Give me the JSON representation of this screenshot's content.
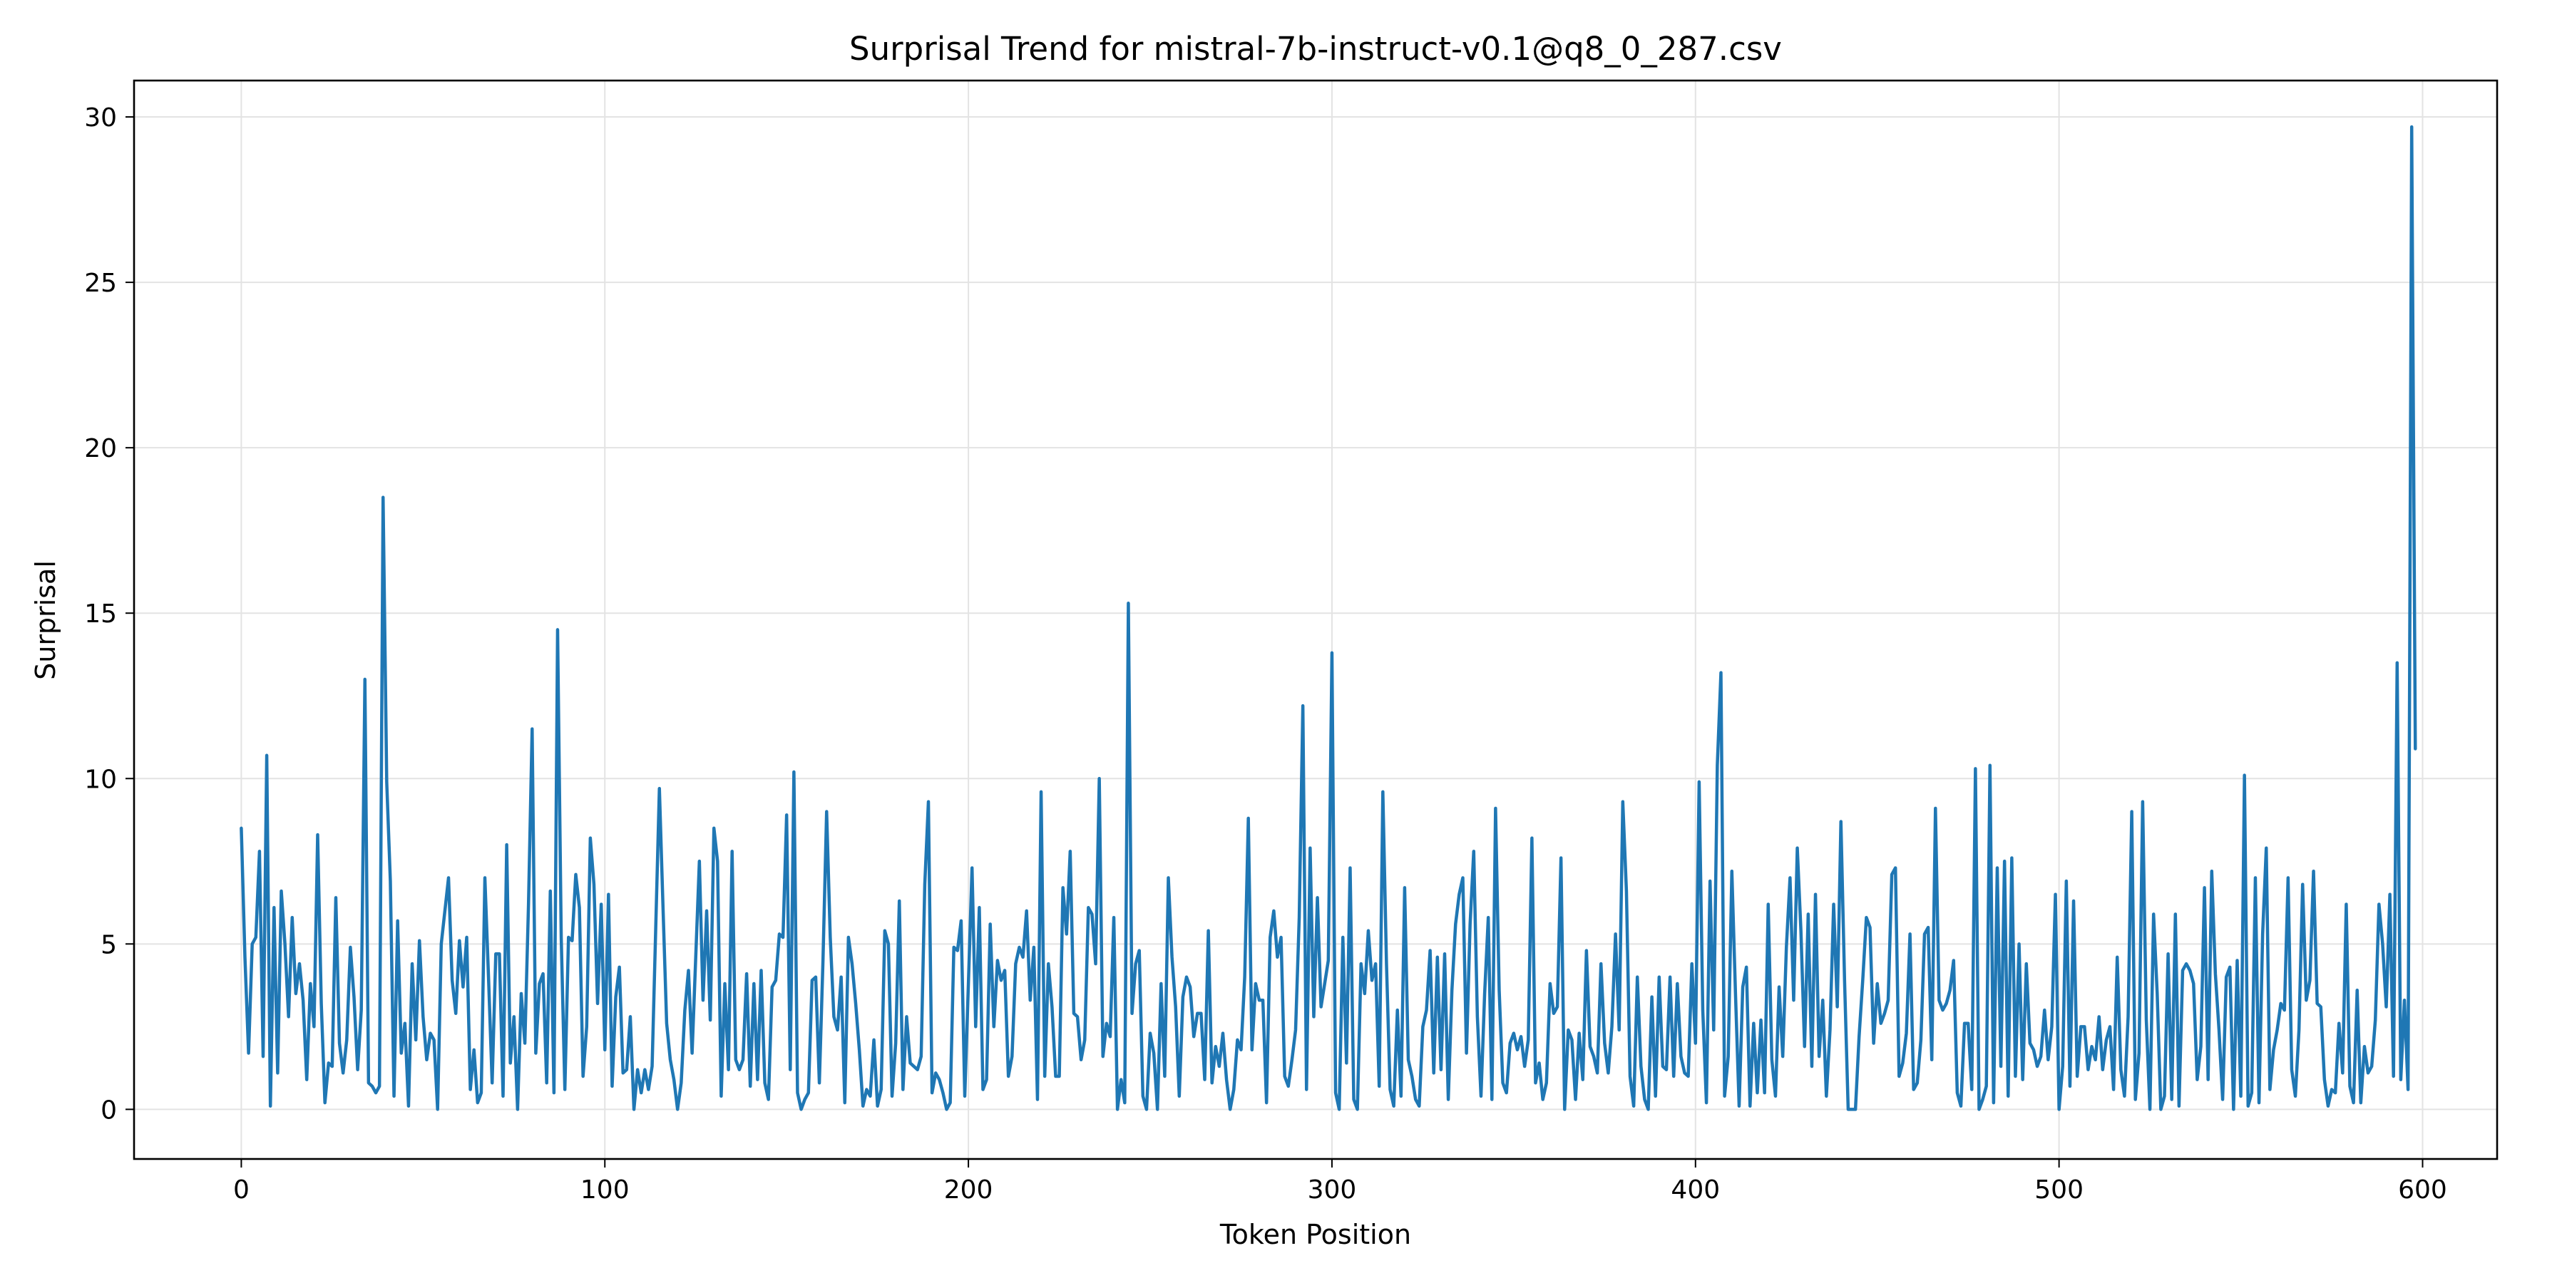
{
  "chart_data": {
    "type": "line",
    "title": "Surprisal Trend for mistral-7b-instruct-v0.1@q8_0_287.csv",
    "xlabel": "Token Position",
    "ylabel": "Surprisal",
    "xlim": [
      -29.5,
      620.5
    ],
    "ylim": [
      -1.5,
      31.1
    ],
    "x_ticks": [
      0,
      100,
      200,
      300,
      400,
      500,
      600
    ],
    "y_ticks": [
      0,
      5,
      10,
      15,
      20,
      25,
      30
    ],
    "grid": true,
    "legend": "none",
    "series": [
      {
        "color": "#1f77b4",
        "x_start": 0,
        "x_step": 1,
        "values": [
          8.5,
          4.6,
          1.7,
          5.0,
          5.2,
          7.8,
          1.6,
          10.7,
          0.1,
          6.1,
          1.1,
          6.6,
          5.0,
          2.8,
          5.8,
          3.5,
          4.4,
          3.3,
          0.9,
          3.8,
          2.5,
          8.3,
          3.2,
          0.2,
          1.4,
          1.3,
          6.4,
          2.0,
          1.1,
          2.1,
          4.9,
          3.4,
          1.2,
          3.0,
          13.0,
          0.8,
          0.7,
          0.5,
          0.7,
          18.5,
          9.9,
          6.9,
          0.4,
          5.7,
          1.7,
          2.6,
          0.1,
          4.4,
          2.1,
          5.1,
          2.8,
          1.5,
          2.3,
          2.1,
          0.0,
          5.0,
          6.0,
          7.0,
          3.9,
          2.9,
          5.1,
          3.7,
          5.2,
          0.6,
          1.8,
          0.2,
          0.5,
          7.0,
          4.0,
          0.8,
          4.7,
          4.7,
          0.4,
          8.0,
          1.4,
          2.8,
          0.0,
          3.5,
          2.0,
          6.2,
          11.5,
          1.7,
          3.8,
          4.1,
          0.8,
          6.6,
          0.5,
          14.5,
          5.2,
          0.6,
          5.2,
          5.1,
          7.1,
          6.1,
          1.0,
          2.5,
          8.2,
          6.8,
          3.2,
          6.2,
          1.8,
          6.5,
          0.7,
          3.4,
          4.3,
          1.1,
          1.2,
          2.8,
          0.0,
          1.2,
          0.5,
          1.2,
          0.6,
          1.3,
          5.5,
          9.7,
          6.1,
          2.6,
          1.5,
          0.9,
          0.0,
          0.8,
          3.0,
          4.2,
          1.7,
          4.6,
          7.5,
          3.3,
          6.0,
          2.7,
          8.5,
          7.5,
          0.4,
          3.8,
          1.2,
          7.8,
          1.5,
          1.2,
          1.5,
          4.1,
          0.7,
          3.8,
          0.9,
          4.2,
          0.8,
          0.3,
          3.7,
          3.9,
          5.3,
          5.2,
          8.9,
          1.2,
          10.2,
          0.5,
          0.0,
          0.3,
          0.5,
          3.9,
          4.0,
          0.8,
          4.5,
          9.0,
          5.2,
          2.8,
          2.4,
          4.0,
          0.2,
          5.2,
          4.4,
          3.2,
          1.8,
          0.1,
          0.6,
          0.4,
          2.1,
          0.1,
          0.6,
          5.4,
          5.0,
          0.4,
          2.0,
          6.3,
          0.6,
          2.8,
          1.4,
          1.3,
          1.2,
          1.6,
          6.8,
          9.3,
          0.5,
          1.1,
          0.9,
          0.5,
          0.0,
          0.2,
          4.9,
          4.8,
          5.7,
          0.4,
          3.8,
          7.3,
          2.5,
          6.1,
          0.6,
          0.9,
          5.6,
          2.5,
          4.5,
          3.9,
          4.2,
          1.0,
          1.6,
          4.4,
          4.9,
          4.6,
          6.0,
          3.3,
          4.9,
          0.3,
          9.6,
          1.0,
          4.4,
          3.1,
          1.0,
          1.0,
          6.7,
          5.3,
          7.8,
          2.9,
          2.8,
          1.5,
          2.1,
          6.1,
          5.9,
          4.4,
          10.0,
          1.6,
          2.6,
          2.2,
          5.8,
          0.0,
          0.9,
          0.2,
          15.3,
          2.9,
          4.4,
          4.8,
          0.4,
          0.0,
          2.3,
          1.7,
          0.0,
          3.8,
          1.0,
          7.0,
          4.6,
          3.1,
          0.4,
          3.4,
          4.0,
          3.7,
          2.2,
          2.9,
          2.9,
          0.9,
          5.4,
          0.8,
          1.9,
          1.3,
          2.3,
          0.9,
          0.0,
          0.6,
          2.1,
          1.8,
          4.0,
          8.8,
          1.8,
          3.8,
          3.3,
          3.3,
          0.2,
          5.2,
          6.0,
          4.6,
          5.2,
          1.0,
          0.7,
          1.5,
          2.4,
          5.8,
          12.2,
          0.6,
          7.9,
          2.8,
          6.4,
          3.1,
          3.8,
          4.5,
          13.8,
          0.5,
          0.0,
          5.2,
          1.4,
          7.3,
          0.3,
          0.0,
          4.4,
          3.5,
          5.4,
          3.9,
          4.4,
          0.7,
          9.6,
          4.4,
          0.6,
          0.1,
          3.0,
          0.4,
          6.7,
          1.5,
          1.0,
          0.3,
          0.1,
          2.5,
          3.0,
          4.8,
          1.1,
          4.6,
          1.2,
          4.7,
          0.3,
          3.6,
          5.6,
          6.5,
          7.0,
          1.7,
          5.6,
          7.8,
          2.8,
          0.4,
          3.5,
          5.8,
          0.3,
          9.1,
          3.6,
          0.8,
          0.5,
          2.0,
          2.3,
          1.8,
          2.2,
          1.3,
          2.1,
          8.2,
          0.8,
          1.4,
          0.3,
          0.8,
          3.8,
          2.9,
          3.1,
          7.6,
          0.0,
          2.4,
          2.1,
          0.3,
          2.3,
          0.9,
          4.8,
          1.9,
          1.6,
          1.1,
          4.4,
          2.0,
          1.1,
          2.5,
          5.3,
          2.4,
          9.3,
          6.6,
          1.0,
          0.1,
          4.0,
          1.3,
          0.3,
          0.0,
          3.4,
          0.4,
          4.0,
          1.3,
          1.2,
          4.0,
          1.0,
          3.8,
          1.6,
          1.1,
          1.0,
          4.4,
          2.0,
          9.9,
          3.0,
          0.2,
          6.9,
          2.4,
          10.4,
          13.2,
          0.4,
          1.6,
          7.2,
          3.5,
          0.1,
          3.7,
          4.3,
          0.1,
          2.6,
          0.5,
          2.7,
          0.5,
          6.2,
          1.5,
          0.4,
          3.7,
          1.6,
          4.9,
          7.0,
          3.3,
          7.9,
          5.4,
          1.9,
          5.9,
          1.3,
          6.5,
          1.6,
          3.3,
          0.4,
          2.4,
          6.2,
          3.1,
          8.7,
          3.9,
          0.0,
          0.0,
          0.0,
          2.2,
          3.9,
          5.8,
          5.5,
          2.0,
          3.8,
          2.6,
          2.9,
          3.3,
          7.1,
          7.3,
          1.0,
          1.4,
          2.3,
          5.3,
          0.6,
          0.8,
          2.1,
          5.3,
          5.5,
          1.5,
          9.1,
          3.3,
          3.0,
          3.2,
          3.6,
          4.5,
          0.5,
          0.1,
          2.6,
          2.6,
          0.6,
          10.3,
          0.0,
          0.3,
          0.7,
          10.4,
          0.2,
          7.3,
          1.3,
          7.5,
          0.4,
          7.6,
          1.0,
          5.0,
          0.9,
          4.4,
          2.0,
          1.8,
          1.3,
          1.6,
          3.0,
          1.5,
          2.5,
          6.5,
          0.0,
          1.3,
          6.9,
          0.7,
          6.3,
          1.0,
          2.5,
          2.5,
          1.2,
          1.9,
          1.5,
          2.8,
          1.2,
          2.1,
          2.5,
          0.6,
          4.6,
          1.2,
          0.4,
          2.8,
          9.0,
          0.3,
          1.7,
          9.3,
          2.7,
          0.0,
          5.9,
          3.5,
          0.0,
          0.4,
          4.7,
          0.3,
          5.9,
          0.1,
          4.2,
          4.4,
          4.2,
          3.8,
          0.9,
          1.9,
          6.7,
          0.9,
          7.2,
          4.1,
          2.4,
          0.3,
          4.0,
          4.3,
          0.0,
          4.5,
          0.4,
          10.1,
          0.1,
          0.5,
          7.0,
          0.2,
          5.3,
          7.9,
          0.6,
          1.8,
          2.4,
          3.2,
          3.0,
          7.0,
          1.2,
          0.4,
          2.4,
          6.8,
          3.3,
          3.9,
          7.2,
          3.2,
          3.1,
          0.9,
          0.1,
          0.6,
          0.5,
          2.6,
          1.1,
          6.2,
          0.7,
          0.2,
          3.6,
          0.2,
          1.9,
          1.1,
          1.3,
          2.7,
          6.2,
          5.0,
          3.1,
          6.5,
          1.0,
          13.5,
          0.9,
          3.3,
          0.6,
          29.7,
          10.9
        ]
      }
    ]
  }
}
